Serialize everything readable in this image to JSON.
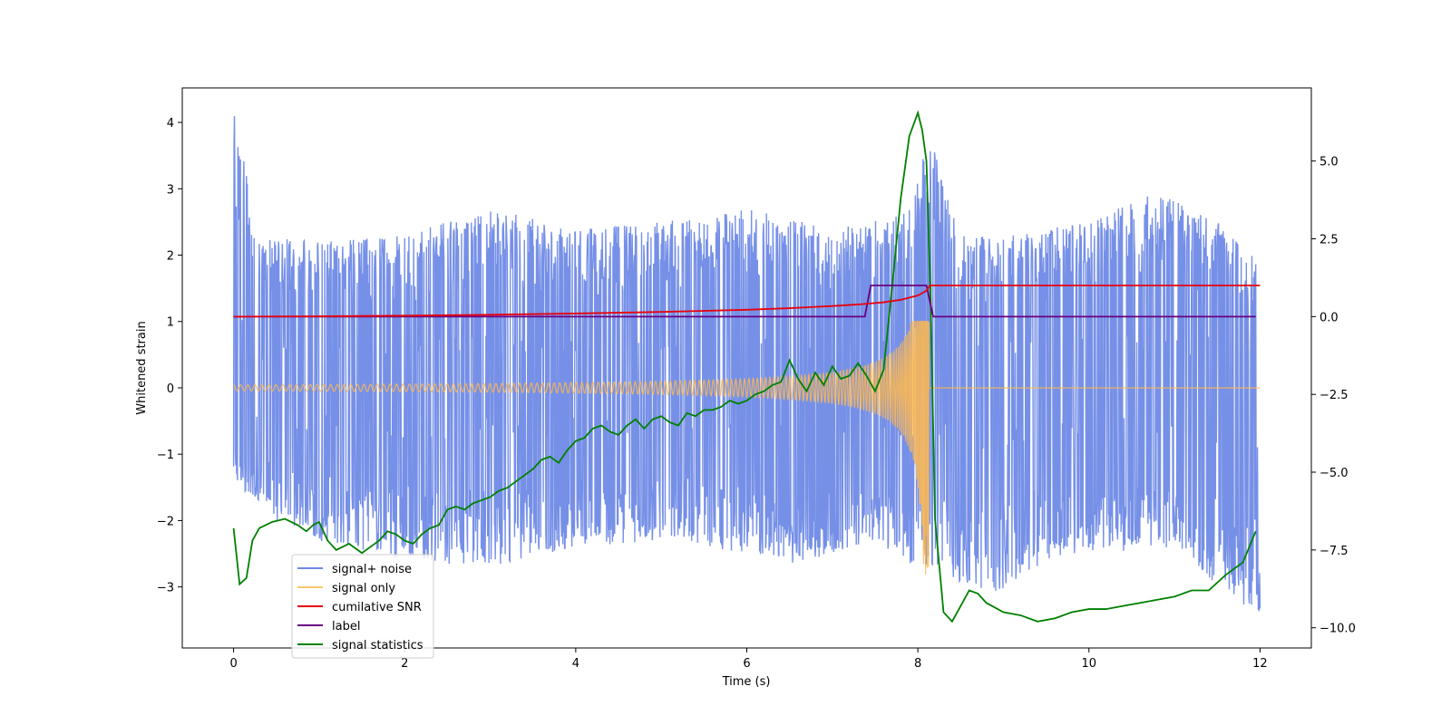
{
  "chart_data": {
    "type": "line",
    "title": "",
    "xlabel": "Time (s)",
    "ylabel": "Whitened strain",
    "y2label": "",
    "xlim": [
      -0.6,
      12.6
    ],
    "ylim": [
      -3.92,
      4.52
    ],
    "y2lim": [
      -10.65,
      7.35
    ],
    "xticks": [
      0,
      2,
      4,
      6,
      8,
      10,
      12
    ],
    "yticks": [
      -3,
      -2,
      -1,
      0,
      1,
      2,
      3,
      4
    ],
    "y2ticks": [
      -10.0,
      -7.5,
      -5.0,
      -2.5,
      0.0,
      2.5,
      5.0
    ],
    "xtick_labels": [
      "0",
      "2",
      "4",
      "6",
      "8",
      "10",
      "12"
    ],
    "ytick_labels": [
      "−3",
      "−2",
      "−1",
      "0",
      "1",
      "2",
      "3",
      "4"
    ],
    "y2tick_labels": [
      "−10.0",
      "−7.5",
      "−5.0",
      "−2.5",
      "0.0",
      "2.5",
      "5.0"
    ],
    "grid": false,
    "legend_position": "lower-left",
    "series": [
      {
        "name": "signal+ noise",
        "axis": "left",
        "color": "#6f8ae6",
        "kind": "noise envelope",
        "x_range": [
          0,
          12
        ],
        "envelope_upper": [
          [
            0,
            4.18
          ],
          [
            0.3,
            2.3
          ],
          [
            1,
            2.2
          ],
          [
            2,
            2.3
          ],
          [
            3,
            2.7
          ],
          [
            4,
            2.4
          ],
          [
            5,
            2.5
          ],
          [
            6,
            2.7
          ],
          [
            7,
            2.4
          ],
          [
            7.8,
            2.6
          ],
          [
            8.15,
            3.75
          ],
          [
            8.5,
            2.3
          ],
          [
            9,
            2.3
          ],
          [
            10,
            2.5
          ],
          [
            10.8,
            2.97
          ],
          [
            11.5,
            2.5
          ],
          [
            12,
            1.9
          ]
        ],
        "envelope_lower": [
          [
            0,
            -1.4
          ],
          [
            0.5,
            -2.0
          ],
          [
            1,
            -2.3
          ],
          [
            2,
            -2.6
          ],
          [
            3,
            -2.7
          ],
          [
            4,
            -2.4
          ],
          [
            5,
            -2.3
          ],
          [
            6,
            -2.5
          ],
          [
            6.6,
            -2.65
          ],
          [
            7.5,
            -2.3
          ],
          [
            8.1,
            -2.8
          ],
          [
            8.9,
            -3.1
          ],
          [
            9.5,
            -2.6
          ],
          [
            10,
            -2.5
          ],
          [
            11,
            -2.4
          ],
          [
            12,
            -3.55
          ]
        ]
      },
      {
        "name": "signal only",
        "axis": "left",
        "color": "#ffb84d",
        "kind": "chirp",
        "merger_time": 8.13,
        "peak": 1.0,
        "min": -2.95
      },
      {
        "name": "cumilative SNR",
        "axis": "right",
        "color": "#e8000b",
        "x": [
          0,
          1,
          2,
          3,
          4,
          5,
          6,
          6.5,
          7,
          7.3,
          7.6,
          7.8,
          8.0,
          8.1,
          8.14,
          12
        ],
        "y": [
          0.0,
          0.01,
          0.03,
          0.06,
          0.1,
          0.15,
          0.22,
          0.27,
          0.34,
          0.39,
          0.46,
          0.54,
          0.68,
          0.83,
          1.0,
          1.0
        ]
      },
      {
        "name": "label",
        "axis": "right",
        "color": "#6a0080",
        "x": [
          0,
          7.38,
          7.45,
          8.1,
          8.18,
          11.95
        ],
        "y": [
          0,
          0,
          1,
          1,
          0,
          0
        ]
      },
      {
        "name": "signal statistics",
        "axis": "right",
        "color": "#008000",
        "x": [
          0,
          0.07,
          0.15,
          0.22,
          0.3,
          0.45,
          0.6,
          0.75,
          0.85,
          0.93,
          1.0,
          1.1,
          1.2,
          1.35,
          1.5,
          1.6,
          1.7,
          1.8,
          1.9,
          2.0,
          2.1,
          2.2,
          2.3,
          2.4,
          2.5,
          2.6,
          2.7,
          2.8,
          2.9,
          3.0,
          3.1,
          3.2,
          3.3,
          3.4,
          3.5,
          3.6,
          3.7,
          3.8,
          3.9,
          4.0,
          4.1,
          4.2,
          4.3,
          4.4,
          4.5,
          4.6,
          4.7,
          4.8,
          4.9,
          5.0,
          5.1,
          5.2,
          5.3,
          5.4,
          5.5,
          5.6,
          5.7,
          5.8,
          5.9,
          6.0,
          6.1,
          6.2,
          6.3,
          6.4,
          6.5,
          6.6,
          6.7,
          6.8,
          6.9,
          7.0,
          7.1,
          7.2,
          7.3,
          7.4,
          7.5,
          7.6,
          7.7,
          7.8,
          7.9,
          8.0,
          8.05,
          8.1,
          8.15,
          8.2,
          8.3,
          8.4,
          8.5,
          8.6,
          8.7,
          8.8,
          9.0,
          9.2,
          9.4,
          9.6,
          9.8,
          10.0,
          10.2,
          10.4,
          10.6,
          10.8,
          11.0,
          11.2,
          11.4,
          11.6,
          11.8,
          11.95
        ],
        "y": [
          -6.8,
          -8.6,
          -8.4,
          -7.2,
          -6.8,
          -6.6,
          -6.5,
          -6.7,
          -6.9,
          -6.7,
          -6.6,
          -7.2,
          -7.5,
          -7.3,
          -7.6,
          -7.4,
          -7.2,
          -6.9,
          -7.0,
          -7.2,
          -7.3,
          -7.0,
          -6.8,
          -6.7,
          -6.2,
          -6.1,
          -6.2,
          -6.0,
          -5.9,
          -5.8,
          -5.6,
          -5.5,
          -5.3,
          -5.1,
          -4.9,
          -4.6,
          -4.5,
          -4.7,
          -4.3,
          -4.0,
          -3.9,
          -3.6,
          -3.5,
          -3.7,
          -3.8,
          -3.5,
          -3.3,
          -3.6,
          -3.3,
          -3.2,
          -3.4,
          -3.5,
          -3.1,
          -3.2,
          -3.0,
          -3.0,
          -2.9,
          -2.7,
          -2.8,
          -2.7,
          -2.5,
          -2.4,
          -2.2,
          -2.1,
          -1.4,
          -2.0,
          -2.4,
          -1.8,
          -2.2,
          -1.6,
          -2.0,
          -1.9,
          -1.5,
          -1.9,
          -2.4,
          -1.7,
          1.0,
          3.8,
          5.8,
          6.55,
          6.0,
          5.0,
          0.5,
          -6.5,
          -9.5,
          -9.8,
          -9.3,
          -8.8,
          -8.9,
          -9.2,
          -9.5,
          -9.6,
          -9.8,
          -9.7,
          -9.5,
          -9.4,
          -9.4,
          -9.3,
          -9.2,
          -9.1,
          -9.0,
          -8.8,
          -8.8,
          -8.3,
          -7.9,
          -6.9
        ]
      }
    ]
  }
}
